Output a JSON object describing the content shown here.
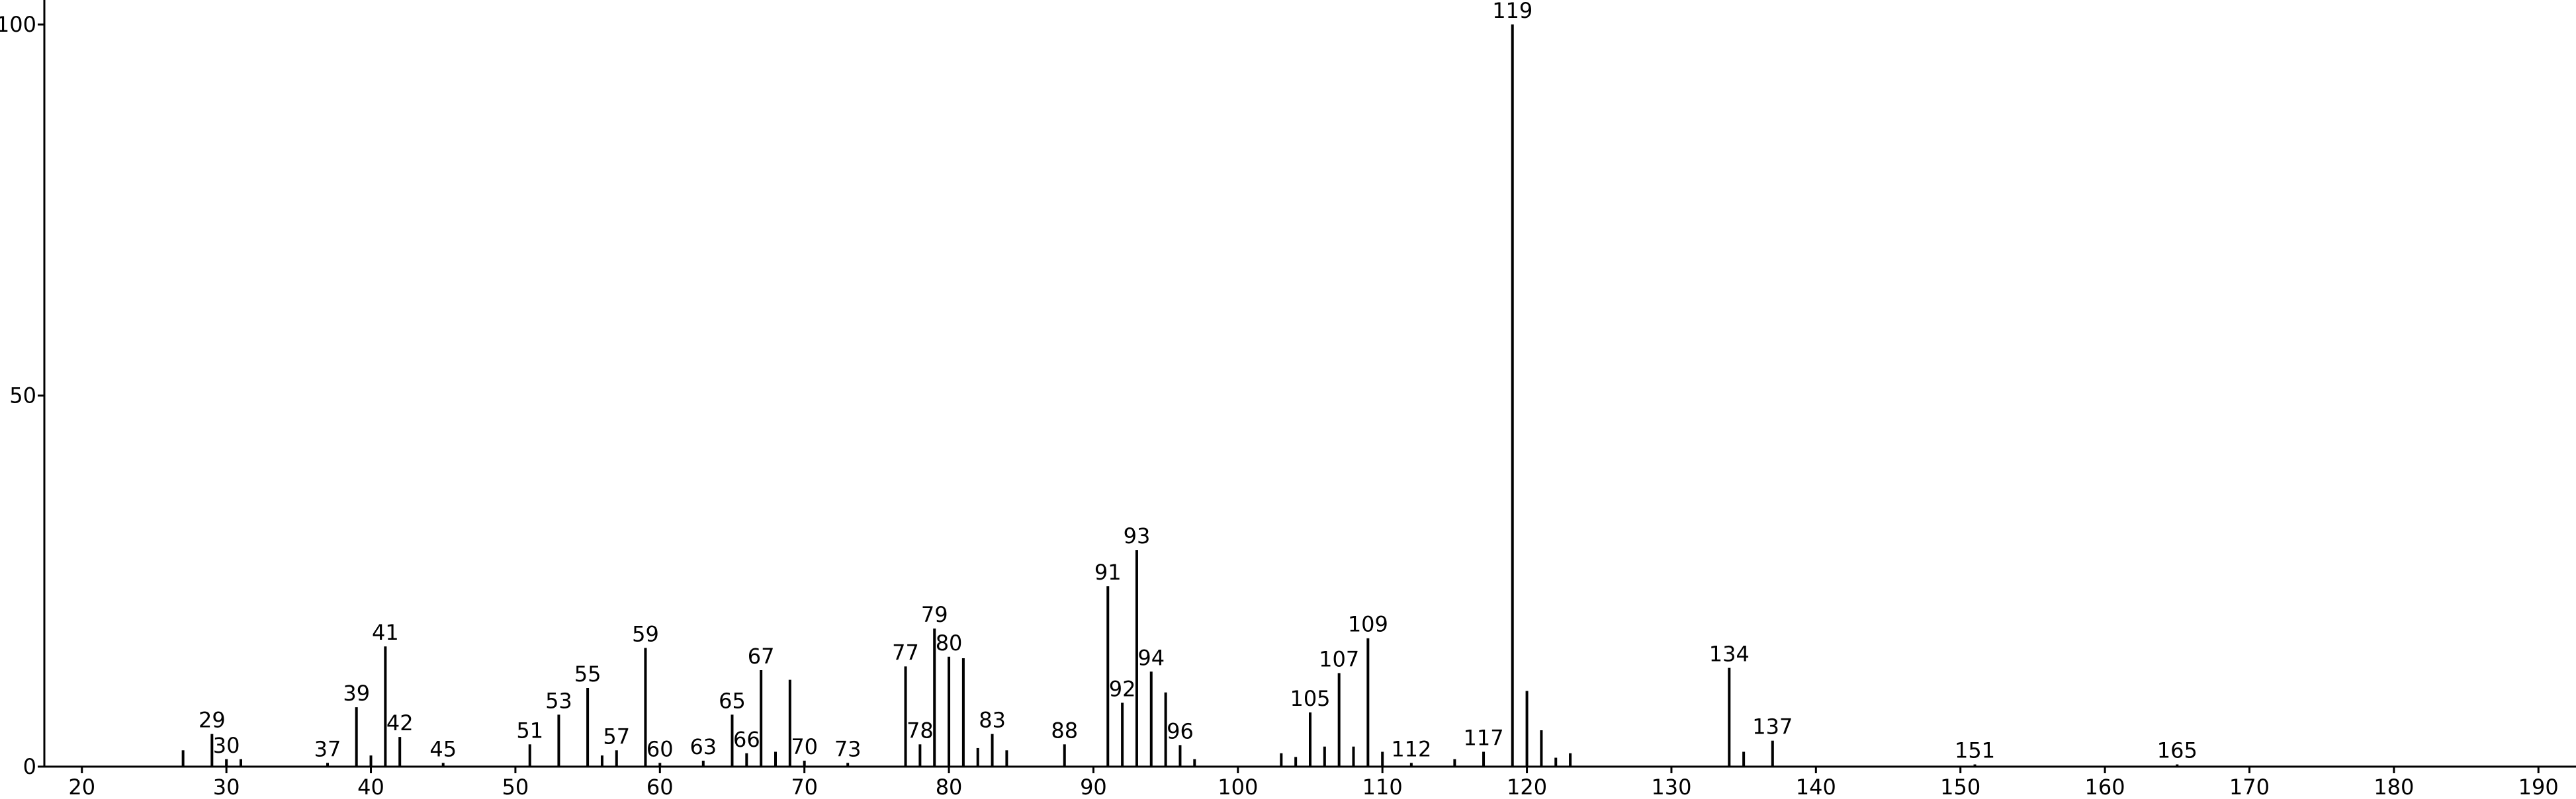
{
  "chart_data": {
    "type": "bar",
    "x": [
      27,
      29,
      30,
      31,
      37,
      39,
      40,
      41,
      42,
      45,
      51,
      53,
      55,
      56,
      57,
      59,
      60,
      63,
      65,
      66,
      67,
      68,
      69,
      70,
      73,
      77,
      78,
      79,
      80,
      81,
      82,
      83,
      84,
      88,
      91,
      92,
      93,
      94,
      95,
      96,
      97,
      103,
      104,
      105,
      106,
      107,
      108,
      109,
      110,
      112,
      115,
      117,
      119,
      120,
      121,
      122,
      123,
      134,
      135,
      137,
      151,
      165
    ],
    "values": [
      2.2,
      4.4,
      1,
      1,
      0.5,
      8,
      1.5,
      16.2,
      4,
      0.5,
      3,
      7,
      10.6,
      1.5,
      2.2,
      16,
      0.5,
      0.8,
      7,
      1.8,
      13,
      2,
      11.7,
      0.8,
      0.5,
      13.5,
      3,
      18.6,
      14.8,
      14.6,
      2.5,
      4.4,
      2.2,
      3,
      24.3,
      8.6,
      29.2,
      12.8,
      10,
      2.9,
      1,
      1.8,
      1.3,
      7.3,
      2.7,
      12.6,
      2.7,
      17.3,
      2,
      0.5,
      1,
      2,
      100,
      10.2,
      4.9,
      1.2,
      1.8,
      13.3,
      2,
      3.5,
      0.3,
      0.3
    ],
    "labeled": [
      false,
      true,
      true,
      false,
      true,
      true,
      false,
      true,
      true,
      true,
      true,
      true,
      true,
      false,
      true,
      true,
      true,
      true,
      true,
      true,
      true,
      false,
      false,
      true,
      true,
      true,
      true,
      true,
      true,
      false,
      false,
      true,
      false,
      true,
      true,
      true,
      true,
      true,
      false,
      true,
      false,
      false,
      false,
      true,
      false,
      true,
      false,
      true,
      false,
      true,
      false,
      true,
      true,
      false,
      false,
      false,
      false,
      true,
      false,
      true,
      true,
      true
    ],
    "color": "#000000",
    "xlim": [
      17.4,
      192.6
    ],
    "xticks": [
      20,
      30,
      40,
      50,
      60,
      70,
      80,
      90,
      100,
      110,
      120,
      130,
      140,
      150,
      160,
      170,
      180,
      190
    ],
    "ylim": [
      0,
      103.3
    ],
    "yticks": [
      0,
      50,
      100
    ]
  }
}
